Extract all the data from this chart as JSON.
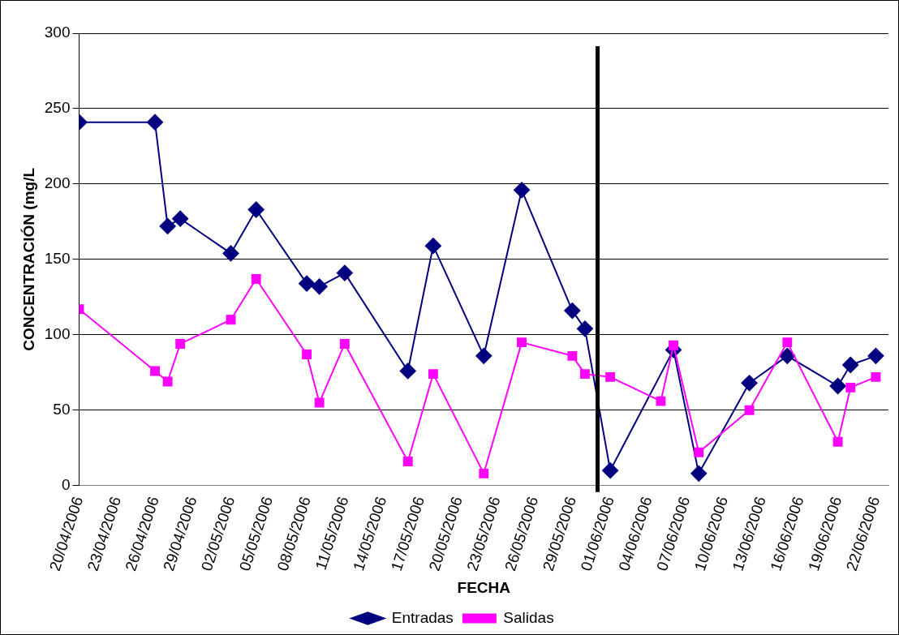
{
  "chart_data": {
    "type": "line",
    "xlabel": "FECHA",
    "ylabel": "CONCENTRACIÓN (mg/L",
    "x": [
      "2006-04-20",
      "2006-04-26",
      "2006-04-27",
      "2006-04-28",
      "2006-05-02",
      "2006-05-04",
      "2006-05-08",
      "2006-05-09",
      "2006-05-11",
      "2006-05-16",
      "2006-05-18",
      "2006-05-22",
      "2006-05-25",
      "2006-05-29",
      "2006-05-30",
      "2006-06-01",
      "2006-06-05",
      "2006-06-06",
      "2006-06-08",
      "2006-06-12",
      "2006-06-15",
      "2006-06-19",
      "2006-06-20",
      "2006-06-22"
    ],
    "series": [
      {
        "name": "Entradas",
        "color": "#000080",
        "marker": "diamond",
        "values": [
          241,
          241,
          172,
          177,
          154,
          183,
          134,
          132,
          141,
          76,
          159,
          86,
          196,
          116,
          104,
          10,
          null,
          90,
          8,
          68,
          86,
          66,
          80,
          86
        ]
      },
      {
        "name": "Salidas",
        "color": "#ff00ff",
        "marker": "square",
        "values": [
          117,
          76,
          69,
          94,
          110,
          137,
          87,
          55,
          94,
          16,
          74,
          8,
          95,
          86,
          74,
          72,
          56,
          93,
          22,
          50,
          95,
          29,
          65,
          72
        ]
      }
    ],
    "xlim": [
      "2006-04-20",
      "2006-06-23"
    ],
    "xticks": [
      {
        "value": "2006-04-20",
        "label": "20/04/2006"
      },
      {
        "value": "2006-04-23",
        "label": "23/04/2006"
      },
      {
        "value": "2006-04-26",
        "label": "26/04/2006"
      },
      {
        "value": "2006-04-29",
        "label": "29/04/2006"
      },
      {
        "value": "2006-05-02",
        "label": "02/05/2006"
      },
      {
        "value": "2006-05-05",
        "label": "05/05/2006"
      },
      {
        "value": "2006-05-08",
        "label": "08/05/2006"
      },
      {
        "value": "2006-05-11",
        "label": "11/05/2006"
      },
      {
        "value": "2006-05-14",
        "label": "14/05/2006"
      },
      {
        "value": "2006-05-17",
        "label": "17/05/2006"
      },
      {
        "value": "2006-05-20",
        "label": "20/05/2006"
      },
      {
        "value": "2006-05-23",
        "label": "23/05/2006"
      },
      {
        "value": "2006-05-26",
        "label": "26/05/2006"
      },
      {
        "value": "2006-05-29",
        "label": "29/05/2006"
      },
      {
        "value": "2006-06-01",
        "label": "01/06/2006"
      },
      {
        "value": "2006-06-04",
        "label": "04/06/2006"
      },
      {
        "value": "2006-06-07",
        "label": "07/06/2006"
      },
      {
        "value": "2006-06-10",
        "label": "10/06/2006"
      },
      {
        "value": "2006-06-13",
        "label": "13/06/2006"
      },
      {
        "value": "2006-06-16",
        "label": "16/06/2006"
      },
      {
        "value": "2006-06-19",
        "label": "19/06/2006"
      },
      {
        "value": "2006-06-22",
        "label": "22/06/2006"
      }
    ],
    "ylim": [
      0,
      300
    ],
    "yticks": [
      0,
      50,
      100,
      150,
      200,
      250,
      300
    ],
    "grid": "y",
    "legend": "bottom",
    "line_style": "solid",
    "ref_lines": [
      {
        "axis": "x",
        "value": "2006-05-31",
        "color": "#000000"
      }
    ]
  }
}
